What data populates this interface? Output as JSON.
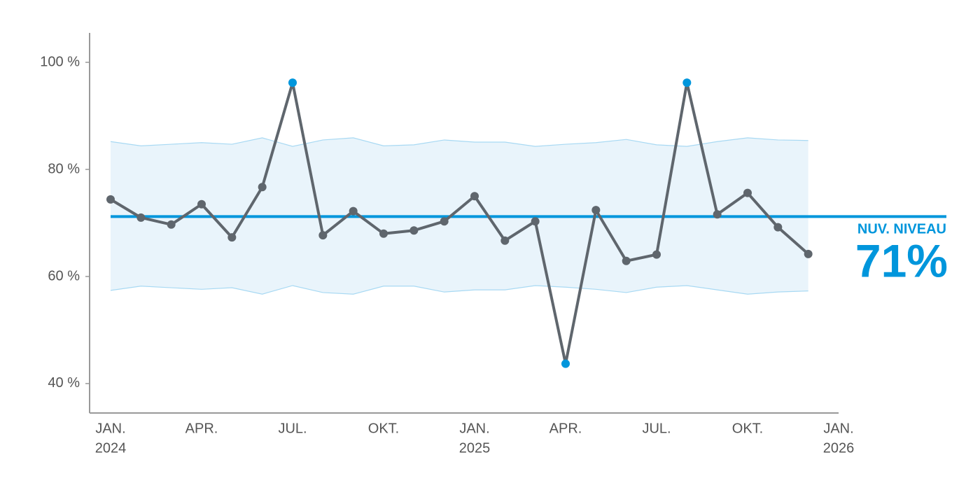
{
  "chart_data": {
    "type": "line",
    "x": [
      "2024-01",
      "2024-02",
      "2024-03",
      "2024-04",
      "2024-05",
      "2024-06",
      "2024-07",
      "2024-08",
      "2024-09",
      "2024-10",
      "2024-11",
      "2024-12",
      "2025-01",
      "2025-02",
      "2025-03",
      "2025-04",
      "2025-05",
      "2025-06",
      "2025-07",
      "2025-08",
      "2025-09",
      "2025-10",
      "2025-11",
      "2025-12"
    ],
    "values": [
      74.4,
      71.0,
      69.7,
      73.5,
      67.3,
      76.7,
      96.2,
      67.7,
      72.2,
      68.0,
      68.6,
      70.3,
      75.0,
      66.7,
      70.3,
      43.7,
      72.4,
      62.9,
      64.1,
      96.2,
      71.6,
      75.6,
      69.2,
      64.2
    ],
    "color": "#5f666d",
    "outlier_color": "#0096dc",
    "band": {
      "upper": [
        85.2,
        84.4,
        84.7,
        85.0,
        84.7,
        85.9,
        84.3,
        85.5,
        85.9,
        84.4,
        84.6,
        85.5,
        85.1,
        85.1,
        84.3,
        84.7,
        85.0,
        85.6,
        84.6,
        84.3,
        85.2,
        85.9,
        85.5,
        85.4
      ],
      "lower": [
        57.4,
        58.2,
        57.9,
        57.6,
        57.9,
        56.7,
        58.3,
        57.0,
        56.7,
        58.2,
        58.2,
        57.1,
        57.5,
        57.5,
        58.3,
        58.0,
        57.6,
        57.0,
        58.0,
        58.3,
        57.5,
        56.7,
        57.1,
        57.3
      ],
      "color": "#a8d9f3",
      "fill": "#e9f4fb"
    },
    "level": {
      "value": 71.2,
      "label": "71%",
      "title": "NUV. NIVEAU",
      "color": "#0096dc"
    },
    "xlim": [
      "2024-01",
      "2026-01"
    ],
    "xticks": [
      {
        "value": "2024-01",
        "label": "JAN.",
        "year": "2024"
      },
      {
        "value": "2024-04",
        "label": "APR."
      },
      {
        "value": "2024-07",
        "label": "JUL."
      },
      {
        "value": "2024-10",
        "label": "OKT."
      },
      {
        "value": "2025-01",
        "label": "JAN.",
        "year": "2025"
      },
      {
        "value": "2025-04",
        "label": "APR."
      },
      {
        "value": "2025-07",
        "label": "JUL."
      },
      {
        "value": "2025-10",
        "label": "OKT."
      },
      {
        "value": "2026-01",
        "label": "JAN.",
        "year": "2026"
      }
    ],
    "ylim": [
      34.5,
      105.5
    ],
    "yticks": [
      {
        "value": 40,
        "label": "40 %"
      },
      {
        "value": 60,
        "label": "60 %"
      },
      {
        "value": 80,
        "label": "80 %"
      },
      {
        "value": 100,
        "label": "100 %"
      }
    ],
    "grid": false
  }
}
